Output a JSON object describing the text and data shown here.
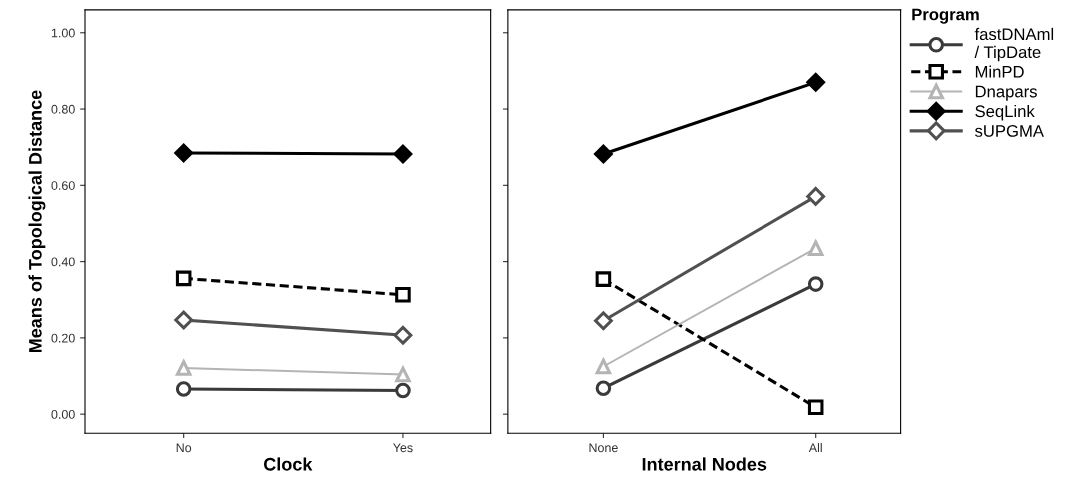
{
  "chart_data": [
    {
      "type": "line",
      "xlabel": "Clock",
      "ylabel": "Means of Topological Distance",
      "categories": [
        "No",
        "Yes"
      ],
      "ylim": [
        -0.05,
        1.06
      ],
      "yticks": [
        {
          "value": 0,
          "label": "0.00"
        },
        {
          "value": 0.2,
          "label": "0.20"
        },
        {
          "value": 0.4,
          "label": "0.40"
        },
        {
          "value": 0.6,
          "label": "0.60"
        },
        {
          "value": 0.8,
          "label": "0.80"
        },
        {
          "value": 1.0,
          "label": "1.00"
        }
      ],
      "grid": false,
      "series": [
        {
          "color": "#3a3a3a",
          "marker": "circle",
          "line_style": "solid",
          "values": [
            0.066,
            0.062
          ]
        },
        {
          "color": "#000000",
          "marker": "square",
          "line_style": "dashed",
          "values": [
            0.356,
            0.313
          ]
        },
        {
          "color": "#b4b4b4",
          "marker": "triangle",
          "line_style": "solid",
          "values": [
            0.121,
            0.104
          ]
        },
        {
          "color": "#000000",
          "marker": "diamond",
          "line_style": "solid",
          "values": [
            0.685,
            0.682
          ]
        },
        {
          "color": "#505050",
          "marker": "diamond",
          "line_style": "solid",
          "values": [
            0.247,
            0.207
          ]
        }
      ]
    },
    {
      "type": "line",
      "xlabel": "Internal Nodes",
      "categories": [
        "None",
        "All"
      ],
      "ylim": [
        -0.05,
        1.06
      ],
      "yticks": [
        {
          "value": 0,
          "label": null
        },
        {
          "value": 0.2,
          "label": null
        },
        {
          "value": 0.4,
          "label": null
        },
        {
          "value": 0.6,
          "label": null
        },
        {
          "value": 0.8,
          "label": null
        },
        {
          "value": 1.0,
          "label": null
        }
      ],
      "tick_labels": "x",
      "grid": false,
      "legend": "right",
      "legend_title": "Program",
      "series": [
        {
          "name": "fastDNAml\n/ TipDate",
          "color": "#3a3a3a",
          "marker": "circle",
          "line_style": "solid",
          "values": [
            0.068,
            0.341
          ]
        },
        {
          "name": "MinPD",
          "color": "#000000",
          "marker": "square",
          "line_style": "dashed",
          "values": [
            0.354,
            0.018
          ]
        },
        {
          "name": "Dnapars",
          "color": "#b4b4b4",
          "marker": "triangle",
          "line_style": "solid",
          "values": [
            0.125,
            0.435
          ]
        },
        {
          "name": "SeqLink",
          "color": "#000000",
          "marker": "diamond",
          "line_style": "solid",
          "values": [
            0.682,
            0.87
          ]
        },
        {
          "name": "sUPGMA",
          "color": "#505050",
          "marker": "diamond",
          "line_style": "solid",
          "values": [
            0.245,
            0.571
          ]
        }
      ]
    }
  ]
}
